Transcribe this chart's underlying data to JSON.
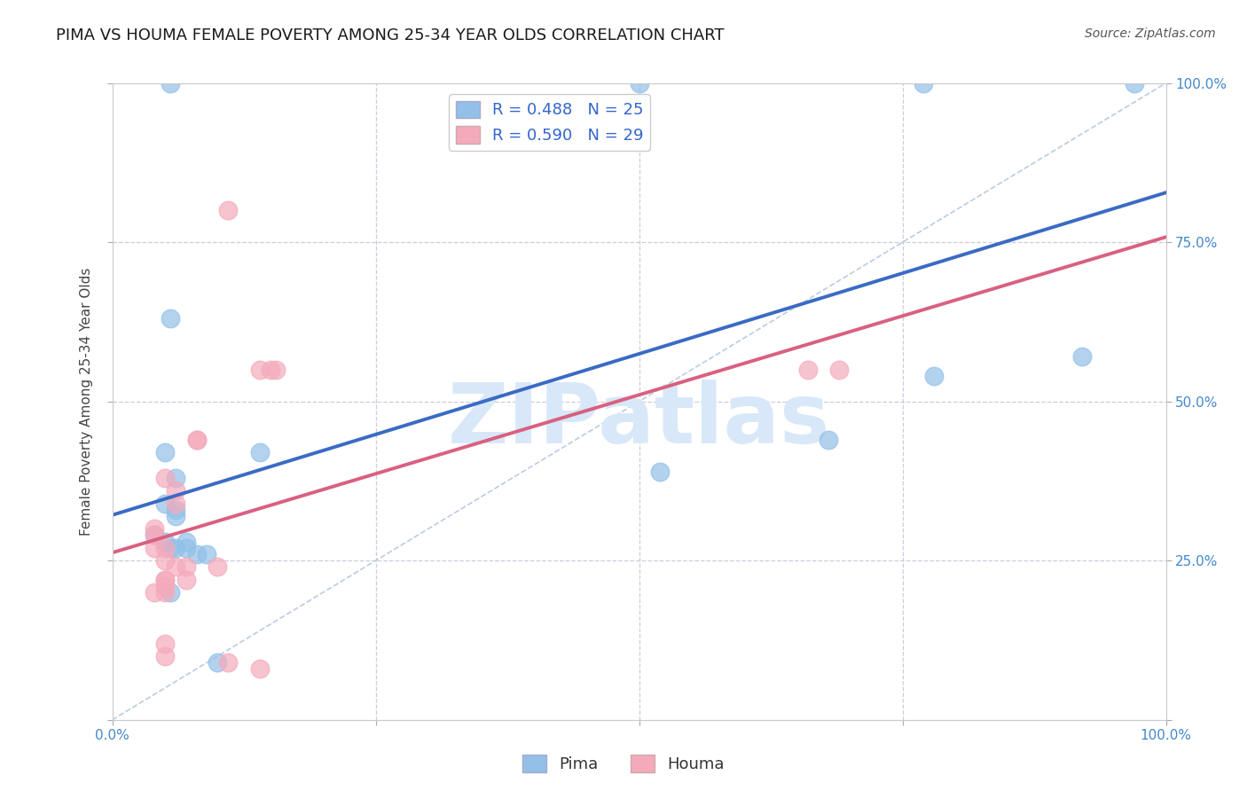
{
  "title": "PIMA VS HOUMA FEMALE POVERTY AMONG 25-34 YEAR OLDS CORRELATION CHART",
  "source": "Source: ZipAtlas.com",
  "ylabel_label": "Female Poverty Among 25-34 Year Olds",
  "xlim": [
    0.0,
    1.0
  ],
  "ylim": [
    0.0,
    1.0
  ],
  "pima_R": 0.488,
  "pima_N": 25,
  "houma_R": 0.59,
  "houma_N": 29,
  "pima_color": "#92C0E8",
  "houma_color": "#F4AABB",
  "pima_line_color": "#3A6BC4",
  "houma_line_color": "#D96080",
  "diagonal_color": "#BBCCE0",
  "grid_color": "#CCCCDD",
  "pima_x": [
    0.055,
    0.5,
    0.77,
    0.97,
    0.055,
    0.05,
    0.06,
    0.05,
    0.06,
    0.06,
    0.04,
    0.05,
    0.055,
    0.06,
    0.07,
    0.07,
    0.08,
    0.09,
    0.14,
    0.52,
    0.68,
    0.78,
    0.92,
    0.055,
    0.1
  ],
  "pima_y": [
    1.0,
    1.0,
    1.0,
    1.0,
    0.63,
    0.42,
    0.38,
    0.34,
    0.33,
    0.32,
    0.29,
    0.28,
    0.27,
    0.27,
    0.28,
    0.27,
    0.26,
    0.26,
    0.42,
    0.39,
    0.44,
    0.54,
    0.57,
    0.2,
    0.09
  ],
  "houma_x": [
    0.11,
    0.155,
    0.14,
    0.15,
    0.05,
    0.06,
    0.06,
    0.04,
    0.04,
    0.04,
    0.05,
    0.05,
    0.06,
    0.07,
    0.1,
    0.05,
    0.05,
    0.05,
    0.05,
    0.04,
    0.08,
    0.08,
    0.66,
    0.69,
    0.05,
    0.05,
    0.11,
    0.14,
    0.07
  ],
  "houma_y": [
    0.8,
    0.55,
    0.55,
    0.55,
    0.38,
    0.36,
    0.34,
    0.3,
    0.29,
    0.27,
    0.27,
    0.25,
    0.24,
    0.24,
    0.24,
    0.22,
    0.22,
    0.21,
    0.2,
    0.2,
    0.44,
    0.44,
    0.55,
    0.55,
    0.12,
    0.1,
    0.09,
    0.08,
    0.22
  ],
  "watermark": "ZIPatlas",
  "watermark_color": "#D8E8F8",
  "background_color": "#FFFFFF",
  "title_fontsize": 13,
  "axis_label_fontsize": 11,
  "tick_fontsize": 11,
  "legend_fontsize": 13
}
